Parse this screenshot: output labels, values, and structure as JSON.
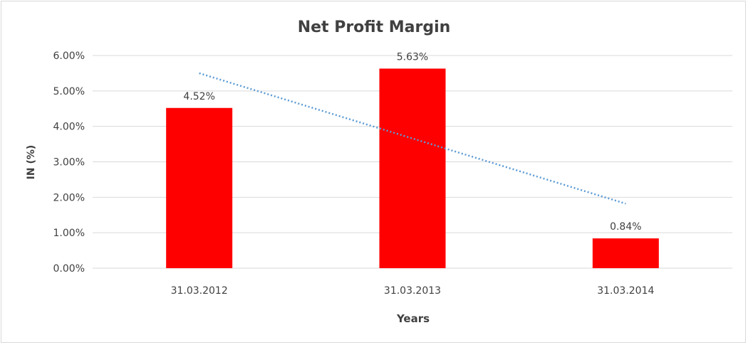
{
  "chart_data": {
    "type": "bar",
    "title": "Net Profit Margin",
    "xlabel": "Years",
    "ylabel": "IN (%)",
    "categories": [
      "31.03.2012",
      "31.03.2013",
      "31.03.2014"
    ],
    "values": [
      4.52,
      5.63,
      0.84
    ],
    "data_labels": [
      "4.52%",
      "5.63%",
      "0.84%"
    ],
    "ylim": [
      0,
      6
    ],
    "yticks": [
      0,
      1,
      2,
      3,
      4,
      5,
      6
    ],
    "ytick_labels": [
      "0.00%",
      "1.00%",
      "2.00%",
      "3.00%",
      "4.00%",
      "5.00%",
      "6.00%"
    ],
    "grid": true,
    "legend": "none",
    "trendline": {
      "type": "linear",
      "start": 5.5,
      "end": 1.82
    },
    "colors": {
      "bar": "#ff0000",
      "trendline": "#5b9bd5",
      "grid": "#d9d9d9",
      "text": "#404040"
    }
  }
}
